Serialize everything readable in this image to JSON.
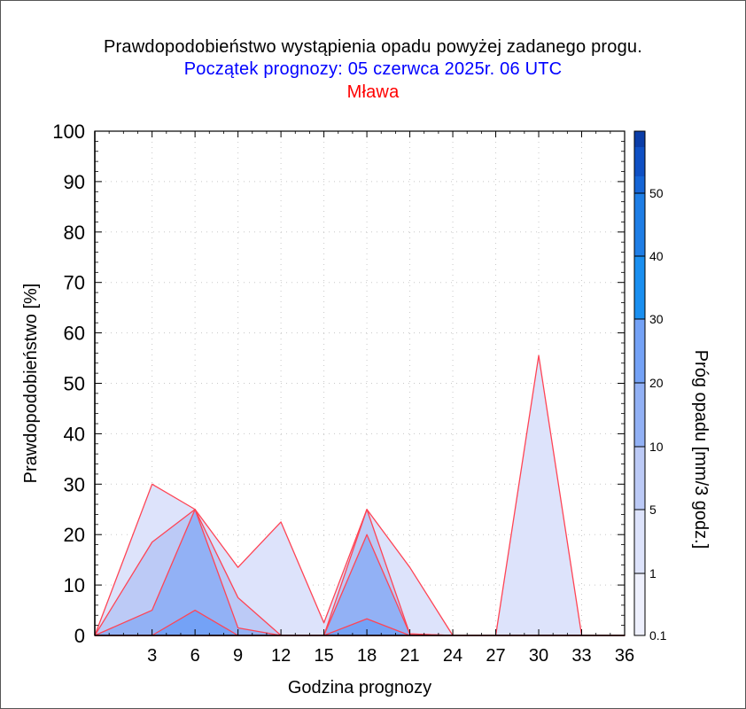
{
  "title": "Prawdopodobieństwo wystąpienia opadu powyżej zadanego progu.",
  "subtitle": "Początek prognozy: 05 czerwca 2025r. 06 UTC",
  "station": "Mława",
  "chart_data": {
    "type": "area",
    "xlabel": "Godzina prognozy",
    "ylabel": "Prawdopodobieństwo [%]",
    "xlim": [
      -1,
      36
    ],
    "ylim": [
      0,
      100
    ],
    "x": [
      -1,
      3,
      6,
      9,
      12,
      15,
      18,
      21,
      24,
      27,
      30,
      33,
      36
    ],
    "x_ticks": [
      "3",
      "6",
      "9",
      "12",
      "15",
      "18",
      "21",
      "24",
      "27",
      "30",
      "33",
      "36"
    ],
    "y_ticks": [
      "0",
      "10",
      "20",
      "30",
      "40",
      "50",
      "60",
      "70",
      "80",
      "90",
      "100"
    ],
    "grid": true,
    "series": [
      {
        "name": "0.1",
        "color": "#dde3fb",
        "values": [
          0,
          30,
          25,
          13.5,
          22.5,
          2.5,
          25,
          13.5,
          0,
          0,
          55.5,
          0,
          0
        ]
      },
      {
        "name": "1",
        "color": "#bccaf6",
        "values": [
          0,
          18.5,
          25,
          7.5,
          0,
          0,
          25,
          0.3,
          0,
          0,
          0,
          0,
          0
        ]
      },
      {
        "name": "5",
        "color": "#92b1f5",
        "values": [
          0,
          5,
          25,
          1.5,
          0,
          0,
          20,
          0.3,
          0,
          0,
          0,
          0,
          0
        ]
      },
      {
        "name": "10",
        "color": "#74a2f6",
        "values": [
          0,
          0,
          5,
          0,
          0,
          0,
          3.3,
          0,
          0,
          0,
          0,
          0,
          0
        ]
      }
    ],
    "colorbar": {
      "label": "Próg opadu [mm/3 godz.]",
      "tick_labels": [
        "0.1",
        "1",
        "5",
        "10",
        "20",
        "30",
        "40",
        "50"
      ],
      "colors": [
        "#eef0fd",
        "#dde3fb",
        "#bccaf6",
        "#92b1f5",
        "#74a2f6",
        "#1a8ff0",
        "#1e7ee6",
        "#1565d6",
        "#0f50c4",
        "#0b3da8"
      ],
      "outline_color": "#ff4455"
    }
  }
}
